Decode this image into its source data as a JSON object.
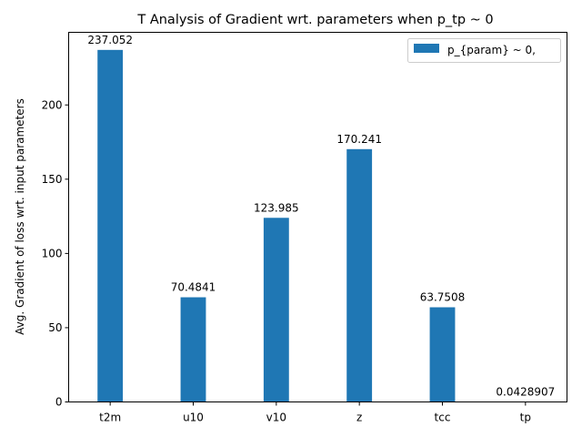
{
  "chart_data": {
    "type": "bar",
    "title": "T Analysis of Gradient wrt. parameters when p_tp ~ 0",
    "xlabel": "",
    "ylabel": "Avg. Gradient of loss wrt. input parameters",
    "categories": [
      "t2m",
      "u10",
      "v10",
      "z",
      "tcc",
      "tp"
    ],
    "series": [
      {
        "name": "p_{param} ~ 0,",
        "values": [
          237.052,
          70.4841,
          123.985,
          170.241,
          63.7508,
          0.0428907
        ],
        "labels": [
          "237.052",
          "70.4841",
          "123.985",
          "170.241",
          "63.7508",
          "0.0428907"
        ],
        "color": "#1f77b4"
      }
    ],
    "ylim": [
      0,
      248.9
    ],
    "yticks": [
      0,
      50,
      100,
      150,
      200
    ],
    "ytick_labels": [
      "0",
      "50",
      "100",
      "150",
      "200"
    ],
    "grid": false,
    "legend_position": "top-right"
  }
}
